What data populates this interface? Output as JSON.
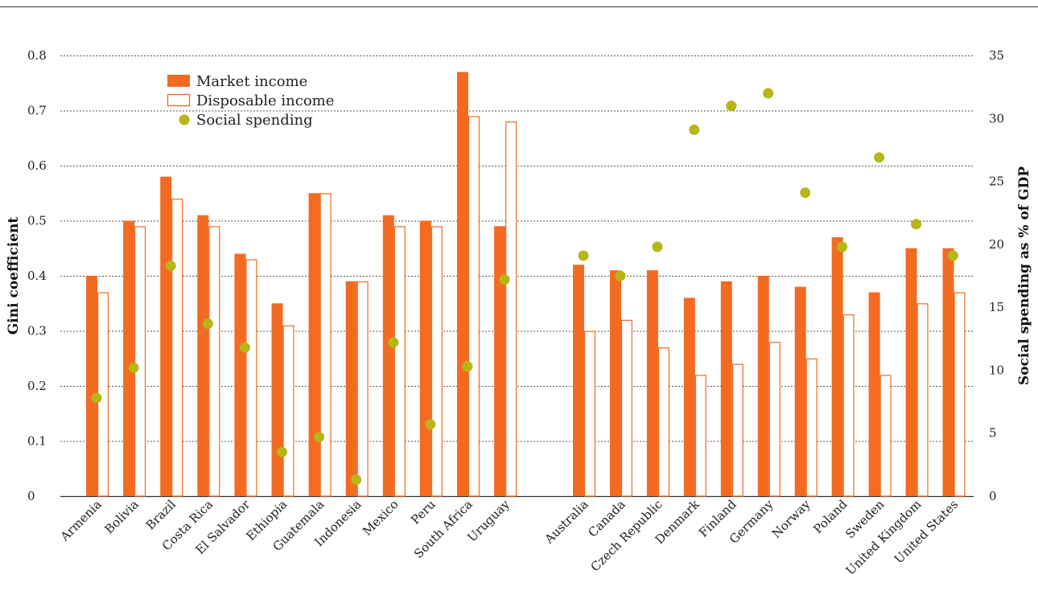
{
  "chart_data": {
    "type": "bar",
    "ylabel_left": "Gini coefficient",
    "ylabel_right": "Social spending as % of GDP",
    "ylim_left": [
      0,
      0.8
    ],
    "ylim_right": [
      0,
      35
    ],
    "left_ticks": [
      "0",
      "0.1",
      "0.2",
      "0.3",
      "0.4",
      "0.5",
      "0.6",
      "0.7",
      "0.8"
    ],
    "right_ticks": [
      "0",
      "5",
      "10",
      "15",
      "20",
      "25",
      "30",
      "35"
    ],
    "grid": true,
    "legend_position": "top-left",
    "groups": [
      {
        "categories": [
          "Armenia",
          "Bolivia",
          "Brazil",
          "Costa Rica",
          "El Salvador",
          "Ethiopia",
          "Guatemala",
          "Indonesia",
          "Mexico",
          "Peru",
          "South Africa",
          "Uruguay"
        ]
      },
      {
        "categories": [
          "Australia",
          "Canada",
          "Czech Republic",
          "Denmark",
          "Finland",
          "Germany",
          "Norway",
          "Poland",
          "Sweden",
          "United Kingdom",
          "United States"
        ]
      }
    ],
    "categories": [
      "Armenia",
      "Bolivia",
      "Brazil",
      "Costa Rica",
      "El Salvador",
      "Ethiopia",
      "Guatemala",
      "Indonesia",
      "Mexico",
      "Peru",
      "South Africa",
      "Uruguay",
      "Australia",
      "Canada",
      "Czech Republic",
      "Denmark",
      "Finland",
      "Germany",
      "Norway",
      "Poland",
      "Sweden",
      "United Kingdom",
      "United States"
    ],
    "series": [
      {
        "name": "Market income",
        "type": "bar",
        "axis": "left",
        "style": "filled",
        "values": [
          0.4,
          0.5,
          0.58,
          0.51,
          0.44,
          0.35,
          0.55,
          0.39,
          0.51,
          0.5,
          0.77,
          0.49,
          0.42,
          0.41,
          0.41,
          0.36,
          0.39,
          0.4,
          0.38,
          0.47,
          0.37,
          0.45,
          0.45
        ]
      },
      {
        "name": "Disposable income",
        "type": "bar",
        "axis": "left",
        "style": "outline",
        "values": [
          0.37,
          0.49,
          0.54,
          0.49,
          0.43,
          0.31,
          0.55,
          0.39,
          0.49,
          0.49,
          0.69,
          0.68,
          0.3,
          0.32,
          0.27,
          0.22,
          0.24,
          0.28,
          0.25,
          0.33,
          0.22,
          0.35,
          0.37
        ]
      },
      {
        "name": "Social spending",
        "type": "scatter",
        "axis": "right",
        "values": [
          7.8,
          10.2,
          18.3,
          13.7,
          11.8,
          3.5,
          4.7,
          1.3,
          12.2,
          5.7,
          10.3,
          17.2,
          19.1,
          17.5,
          19.8,
          29.1,
          31.0,
          32.0,
          24.1,
          19.8,
          26.9,
          21.6,
          19.1
        ]
      }
    ],
    "colors": {
      "bar_fill": "#f26b21",
      "bar_outline": "#f26b21",
      "dot": "#b7b619",
      "grid": "#555555",
      "axis": "#333333"
    }
  }
}
